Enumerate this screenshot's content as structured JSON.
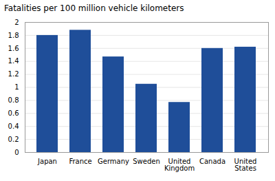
{
  "chart_data": {
    "type": "bar",
    "title": "Fatalities per 100 million vehicle kilometers",
    "categories": [
      "Japan",
      "France",
      "Germany",
      "Sweden",
      "United\nKingdom",
      "Canada",
      "United\nStates"
    ],
    "values": [
      1.8,
      1.88,
      1.47,
      1.05,
      0.77,
      1.6,
      1.62
    ],
    "color": "#1F4E99",
    "ylim": [
      0,
      2.0
    ],
    "yticks": [
      0,
      0.2,
      0.4,
      0.6,
      0.8,
      1,
      1.2,
      1.4,
      1.6,
      1.8,
      2
    ],
    "grid": true
  }
}
